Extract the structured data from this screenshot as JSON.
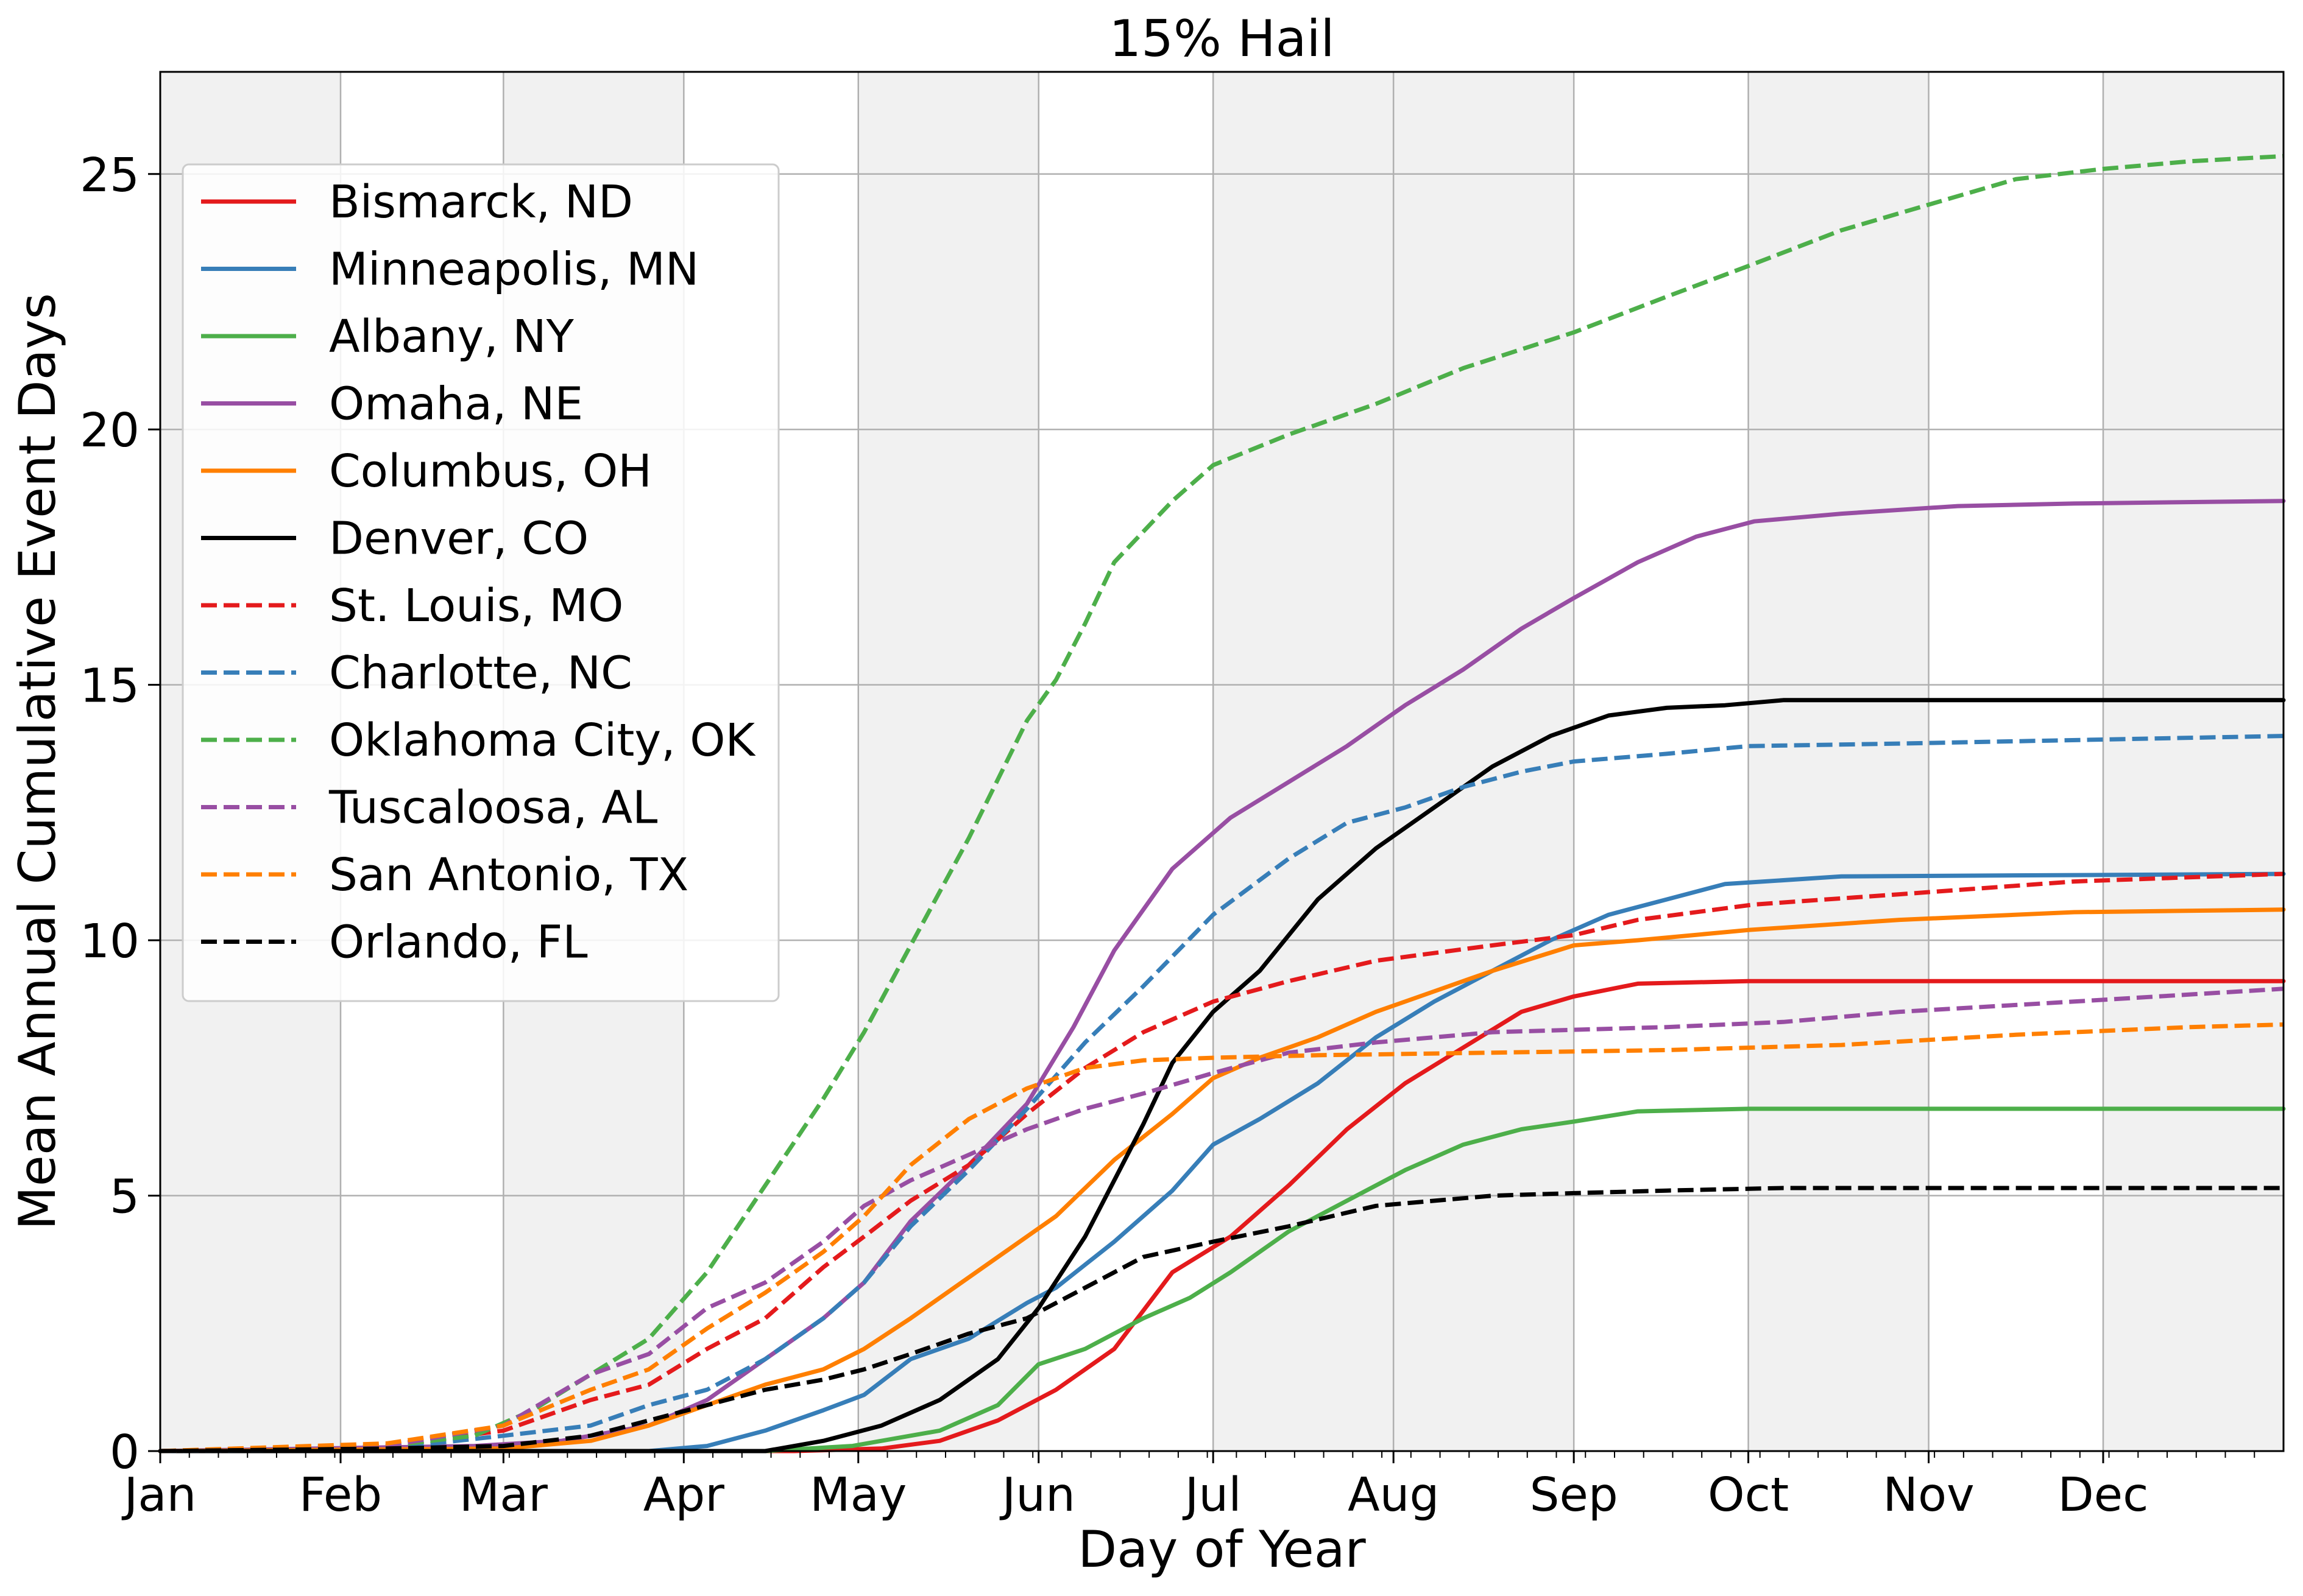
{
  "chart_data": {
    "type": "line",
    "title": "15% Hail",
    "xlabel": "Day of Year",
    "ylabel": "Mean Annual Cumulative Event Days",
    "xlim": [
      1,
      366
    ],
    "ylim": [
      0,
      27
    ],
    "grid": true,
    "legend_position": "upper-left",
    "x_ticks": [
      {
        "label": "Jan",
        "day": 1
      },
      {
        "label": "Feb",
        "day": 32
      },
      {
        "label": "Mar",
        "day": 60
      },
      {
        "label": "Apr",
        "day": 91
      },
      {
        "label": "May",
        "day": 121
      },
      {
        "label": "Jun",
        "day": 152
      },
      {
        "label": "Jul",
        "day": 182
      },
      {
        "label": "Aug",
        "day": 213
      },
      {
        "label": "Sep",
        "day": 244
      },
      {
        "label": "Oct",
        "day": 274
      },
      {
        "label": "Nov",
        "day": 305
      },
      {
        "label": "Dec",
        "day": 335
      }
    ],
    "y_ticks": [
      0,
      5,
      10,
      15,
      20,
      25
    ],
    "shaded_months": [
      "Jan",
      "Mar",
      "May",
      "Jul",
      "Aug",
      "Oct",
      "Dec"
    ],
    "series": [
      {
        "name": "Bismarck, ND",
        "color": "#e41a1c",
        "dash": "solid",
        "points": [
          [
            1,
            0
          ],
          [
            110,
            0
          ],
          [
            125,
            0.05
          ],
          [
            135,
            0.2
          ],
          [
            145,
            0.6
          ],
          [
            155,
            1.2
          ],
          [
            165,
            2
          ],
          [
            175,
            3.5
          ],
          [
            185,
            4.2
          ],
          [
            195,
            5.2
          ],
          [
            205,
            6.3
          ],
          [
            215,
            7.2
          ],
          [
            225,
            7.9
          ],
          [
            235,
            8.6
          ],
          [
            244,
            8.9
          ],
          [
            255,
            9.15
          ],
          [
            274,
            9.2
          ],
          [
            366,
            9.2
          ]
        ]
      },
      {
        "name": "Minneapolis, MN",
        "color": "#377eb8",
        "dash": "solid",
        "points": [
          [
            1,
            0
          ],
          [
            85,
            0
          ],
          [
            95,
            0.1
          ],
          [
            105,
            0.4
          ],
          [
            115,
            0.8
          ],
          [
            122,
            1.1
          ],
          [
            130,
            1.8
          ],
          [
            140,
            2.2
          ],
          [
            150,
            2.9
          ],
          [
            155,
            3.2
          ],
          [
            165,
            4.1
          ],
          [
            175,
            5.1
          ],
          [
            182,
            6
          ],
          [
            190,
            6.5
          ],
          [
            200,
            7.2
          ],
          [
            210,
            8.1
          ],
          [
            220,
            8.8
          ],
          [
            230,
            9.4
          ],
          [
            240,
            10
          ],
          [
            250,
            10.5
          ],
          [
            260,
            10.8
          ],
          [
            270,
            11.1
          ],
          [
            290,
            11.25
          ],
          [
            366,
            11.3
          ]
        ]
      },
      {
        "name": "Albany, NY",
        "color": "#4daf4a",
        "dash": "solid",
        "points": [
          [
            1,
            0
          ],
          [
            105,
            0
          ],
          [
            120,
            0.1
          ],
          [
            135,
            0.4
          ],
          [
            145,
            0.9
          ],
          [
            152,
            1.7
          ],
          [
            160,
            2
          ],
          [
            170,
            2.6
          ],
          [
            178,
            3
          ],
          [
            185,
            3.5
          ],
          [
            195,
            4.3
          ],
          [
            205,
            4.9
          ],
          [
            215,
            5.5
          ],
          [
            225,
            6
          ],
          [
            235,
            6.3
          ],
          [
            244,
            6.45
          ],
          [
            255,
            6.65
          ],
          [
            274,
            6.7
          ],
          [
            366,
            6.7
          ]
        ]
      },
      {
        "name": "Omaha, NE",
        "color": "#984ea3",
        "dash": "solid",
        "points": [
          [
            1,
            0
          ],
          [
            55,
            0.1
          ],
          [
            70,
            0.2
          ],
          [
            85,
            0.5
          ],
          [
            95,
            1
          ],
          [
            105,
            1.8
          ],
          [
            115,
            2.6
          ],
          [
            122,
            3.3
          ],
          [
            130,
            4.5
          ],
          [
            140,
            5.6
          ],
          [
            150,
            6.8
          ],
          [
            158,
            8.3
          ],
          [
            165,
            9.8
          ],
          [
            175,
            11.4
          ],
          [
            185,
            12.4
          ],
          [
            195,
            13.1
          ],
          [
            205,
            13.8
          ],
          [
            215,
            14.6
          ],
          [
            225,
            15.3
          ],
          [
            235,
            16.1
          ],
          [
            244,
            16.7
          ],
          [
            255,
            17.4
          ],
          [
            265,
            17.9
          ],
          [
            275,
            18.2
          ],
          [
            290,
            18.35
          ],
          [
            310,
            18.5
          ],
          [
            330,
            18.55
          ],
          [
            366,
            18.6
          ]
        ]
      },
      {
        "name": "Columbus, OH",
        "color": "#ff7f00",
        "dash": "solid",
        "points": [
          [
            1,
            0
          ],
          [
            60,
            0.05
          ],
          [
            75,
            0.2
          ],
          [
            85,
            0.5
          ],
          [
            95,
            0.9
          ],
          [
            105,
            1.3
          ],
          [
            115,
            1.6
          ],
          [
            122,
            2
          ],
          [
            130,
            2.6
          ],
          [
            140,
            3.4
          ],
          [
            150,
            4.2
          ],
          [
            155,
            4.6
          ],
          [
            165,
            5.7
          ],
          [
            175,
            6.6
          ],
          [
            182,
            7.3
          ],
          [
            190,
            7.7
          ],
          [
            200,
            8.1
          ],
          [
            210,
            8.6
          ],
          [
            220,
            9
          ],
          [
            230,
            9.4
          ],
          [
            244,
            9.9
          ],
          [
            255,
            10
          ],
          [
            274,
            10.2
          ],
          [
            300,
            10.4
          ],
          [
            330,
            10.55
          ],
          [
            366,
            10.6
          ]
        ]
      },
      {
        "name": "Denver, CO",
        "color": "#000000",
        "dash": "solid",
        "points": [
          [
            1,
            0
          ],
          [
            105,
            0
          ],
          [
            115,
            0.2
          ],
          [
            125,
            0.5
          ],
          [
            135,
            1
          ],
          [
            145,
            1.8
          ],
          [
            152,
            2.8
          ],
          [
            160,
            4.2
          ],
          [
            165,
            5.3
          ],
          [
            170,
            6.4
          ],
          [
            175,
            7.6
          ],
          [
            182,
            8.6
          ],
          [
            190,
            9.4
          ],
          [
            200,
            10.8
          ],
          [
            210,
            11.8
          ],
          [
            220,
            12.6
          ],
          [
            230,
            13.4
          ],
          [
            240,
            14
          ],
          [
            250,
            14.4
          ],
          [
            260,
            14.55
          ],
          [
            270,
            14.6
          ],
          [
            280,
            14.7
          ],
          [
            366,
            14.7
          ]
        ]
      },
      {
        "name": "St. Louis, MO",
        "color": "#e41a1c",
        "dash": "dashed",
        "points": [
          [
            1,
            0
          ],
          [
            40,
            0.1
          ],
          [
            60,
            0.4
          ],
          [
            75,
            1
          ],
          [
            85,
            1.3
          ],
          [
            95,
            2
          ],
          [
            105,
            2.6
          ],
          [
            115,
            3.6
          ],
          [
            122,
            4.2
          ],
          [
            130,
            4.9
          ],
          [
            140,
            5.6
          ],
          [
            150,
            6.6
          ],
          [
            160,
            7.5
          ],
          [
            170,
            8.2
          ],
          [
            182,
            8.8
          ],
          [
            195,
            9.2
          ],
          [
            210,
            9.6
          ],
          [
            230,
            9.9
          ],
          [
            244,
            10.1
          ],
          [
            255,
            10.4
          ],
          [
            275,
            10.7
          ],
          [
            300,
            10.9
          ],
          [
            330,
            11.15
          ],
          [
            366,
            11.3
          ]
        ]
      },
      {
        "name": "Charlotte, NC",
        "color": "#377eb8",
        "dash": "dashed",
        "points": [
          [
            1,
            0
          ],
          [
            40,
            0.05
          ],
          [
            60,
            0.3
          ],
          [
            75,
            0.5
          ],
          [
            85,
            0.9
          ],
          [
            95,
            1.2
          ],
          [
            105,
            1.8
          ],
          [
            115,
            2.6
          ],
          [
            122,
            3.3
          ],
          [
            130,
            4.4
          ],
          [
            140,
            5.5
          ],
          [
            150,
            6.7
          ],
          [
            160,
            8
          ],
          [
            170,
            9.1
          ],
          [
            182,
            10.5
          ],
          [
            195,
            11.6
          ],
          [
            205,
            12.3
          ],
          [
            215,
            12.6
          ],
          [
            225,
            13
          ],
          [
            235,
            13.3
          ],
          [
            244,
            13.5
          ],
          [
            260,
            13.65
          ],
          [
            274,
            13.8
          ],
          [
            300,
            13.85
          ],
          [
            366,
            14
          ]
        ]
      },
      {
        "name": "Oklahoma City, OK",
        "color": "#4daf4a",
        "dash": "dashed",
        "points": [
          [
            1,
            0
          ],
          [
            40,
            0.1
          ],
          [
            55,
            0.3
          ],
          [
            65,
            0.8
          ],
          [
            75,
            1.5
          ],
          [
            85,
            2.2
          ],
          [
            95,
            3.5
          ],
          [
            105,
            5.2
          ],
          [
            115,
            6.9
          ],
          [
            122,
            8.2
          ],
          [
            130,
            9.9
          ],
          [
            140,
            12
          ],
          [
            150,
            14.3
          ],
          [
            155,
            15.1
          ],
          [
            160,
            16.2
          ],
          [
            165,
            17.4
          ],
          [
            170,
            18
          ],
          [
            175,
            18.6
          ],
          [
            182,
            19.3
          ],
          [
            195,
            19.9
          ],
          [
            210,
            20.5
          ],
          [
            225,
            21.2
          ],
          [
            244,
            21.9
          ],
          [
            260,
            22.6
          ],
          [
            274,
            23.2
          ],
          [
            290,
            23.9
          ],
          [
            305,
            24.4
          ],
          [
            320,
            24.9
          ],
          [
            335,
            25.1
          ],
          [
            350,
            25.25
          ],
          [
            366,
            25.35
          ]
        ]
      },
      {
        "name": "Tuscaloosa, AL",
        "color": "#984ea3",
        "dash": "dashed",
        "points": [
          [
            1,
            0
          ],
          [
            40,
            0.1
          ],
          [
            60,
            0.5
          ],
          [
            75,
            1.5
          ],
          [
            85,
            1.9
          ],
          [
            95,
            2.8
          ],
          [
            105,
            3.3
          ],
          [
            115,
            4.1
          ],
          [
            122,
            4.8
          ],
          [
            130,
            5.3
          ],
          [
            140,
            5.8
          ],
          [
            150,
            6.3
          ],
          [
            160,
            6.7
          ],
          [
            170,
            7
          ],
          [
            182,
            7.4
          ],
          [
            195,
            7.8
          ],
          [
            210,
            8
          ],
          [
            230,
            8.2
          ],
          [
            260,
            8.3
          ],
          [
            280,
            8.4
          ],
          [
            300,
            8.6
          ],
          [
            330,
            8.8
          ],
          [
            366,
            9.05
          ]
        ]
      },
      {
        "name": "San Antonio, TX",
        "color": "#ff7f00",
        "dash": "dashed",
        "points": [
          [
            1,
            0
          ],
          [
            40,
            0.15
          ],
          [
            60,
            0.5
          ],
          [
            75,
            1.2
          ],
          [
            85,
            1.6
          ],
          [
            95,
            2.4
          ],
          [
            105,
            3.1
          ],
          [
            115,
            3.9
          ],
          [
            122,
            4.6
          ],
          [
            130,
            5.6
          ],
          [
            140,
            6.5
          ],
          [
            150,
            7.1
          ],
          [
            160,
            7.5
          ],
          [
            170,
            7.65
          ],
          [
            182,
            7.7
          ],
          [
            200,
            7.75
          ],
          [
            230,
            7.8
          ],
          [
            260,
            7.85
          ],
          [
            290,
            7.95
          ],
          [
            320,
            8.15
          ],
          [
            350,
            8.3
          ],
          [
            366,
            8.35
          ]
        ]
      },
      {
        "name": "Orlando, FL",
        "color": "#000000",
        "dash": "dashed",
        "points": [
          [
            1,
            0
          ],
          [
            40,
            0.05
          ],
          [
            60,
            0.1
          ],
          [
            75,
            0.3
          ],
          [
            85,
            0.6
          ],
          [
            95,
            0.9
          ],
          [
            105,
            1.2
          ],
          [
            115,
            1.4
          ],
          [
            122,
            1.6
          ],
          [
            130,
            1.9
          ],
          [
            140,
            2.3
          ],
          [
            150,
            2.6
          ],
          [
            160,
            3.2
          ],
          [
            170,
            3.8
          ],
          [
            182,
            4.1
          ],
          [
            195,
            4.4
          ],
          [
            210,
            4.8
          ],
          [
            230,
            5
          ],
          [
            244,
            5.05
          ],
          [
            260,
            5.1
          ],
          [
            280,
            5.15
          ],
          [
            366,
            5.15
          ]
        ]
      }
    ]
  }
}
